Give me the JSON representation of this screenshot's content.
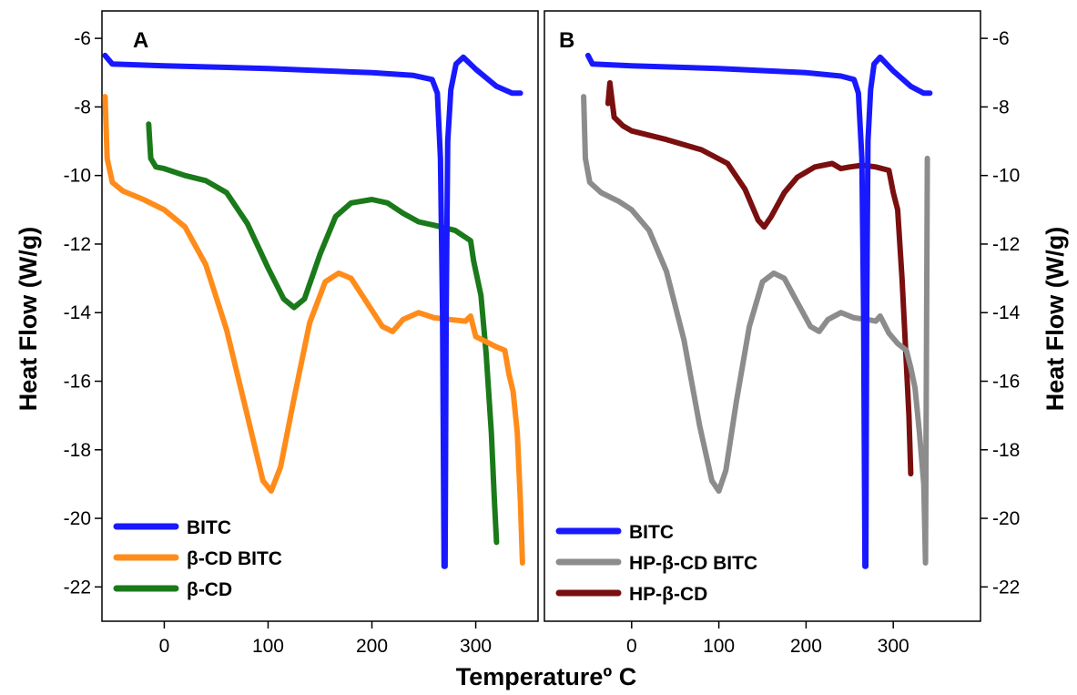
{
  "chart_data": [
    {
      "type": "line",
      "panel_label": "A",
      "ylabel": "Heat Flow (W/g)",
      "xlim": [
        -60,
        360
      ],
      "ylim": [
        -23,
        -5.2
      ],
      "x_ticks": [
        0,
        100,
        200,
        300
      ],
      "y_ticks": [
        -6,
        -8,
        -10,
        -12,
        -14,
        -16,
        -18,
        -20,
        -22
      ],
      "legend_position": "bottom-left",
      "series": [
        {
          "name": "BITC",
          "color": "#1919ff",
          "points": [
            [
              -57,
              -6.5
            ],
            [
              -50,
              -6.75
            ],
            [
              0,
              -6.8
            ],
            [
              100,
              -6.88
            ],
            [
              200,
              -7.0
            ],
            [
              240,
              -7.08
            ],
            [
              258,
              -7.2
            ],
            [
              263,
              -7.6
            ],
            [
              266,
              -9.5
            ],
            [
              268,
              -14
            ],
            [
              269.5,
              -21.4
            ],
            [
              270.5,
              -21.4
            ],
            [
              271.5,
              -14
            ],
            [
              273,
              -9
            ],
            [
              276,
              -7.5
            ],
            [
              281,
              -6.75
            ],
            [
              288,
              -6.55
            ],
            [
              300,
              -6.9
            ],
            [
              320,
              -7.4
            ],
            [
              335,
              -7.6
            ],
            [
              343,
              -7.6
            ]
          ]
        },
        {
          "name": "β-CD BITC",
          "color": "#ff8c1a",
          "points": [
            [
              -57,
              -7.7
            ],
            [
              -55,
              -9.5
            ],
            [
              -50,
              -10.2
            ],
            [
              -40,
              -10.45
            ],
            [
              -20,
              -10.7
            ],
            [
              0,
              -11.0
            ],
            [
              20,
              -11.5
            ],
            [
              40,
              -12.6
            ],
            [
              60,
              -14.5
            ],
            [
              80,
              -17.0
            ],
            [
              95,
              -18.9
            ],
            [
              103,
              -19.2
            ],
            [
              112,
              -18.5
            ],
            [
              125,
              -16.5
            ],
            [
              140,
              -14.3
            ],
            [
              155,
              -13.1
            ],
            [
              168,
              -12.85
            ],
            [
              180,
              -13.0
            ],
            [
              195,
              -13.7
            ],
            [
              210,
              -14.4
            ],
            [
              220,
              -14.55
            ],
            [
              230,
              -14.2
            ],
            [
              245,
              -14.0
            ],
            [
              260,
              -14.15
            ],
            [
              275,
              -14.2
            ],
            [
              290,
              -14.25
            ],
            [
              295,
              -14.1
            ],
            [
              300,
              -14.7
            ],
            [
              310,
              -14.85
            ],
            [
              320,
              -15.0
            ],
            [
              328,
              -15.1
            ],
            [
              332,
              -15.8
            ],
            [
              336,
              -16.3
            ],
            [
              340,
              -17.5
            ],
            [
              343,
              -19.5
            ],
            [
              345,
              -21.3
            ]
          ]
        },
        {
          "name": "β-CD",
          "color": "#1a7a1a",
          "points": [
            [
              -15,
              -8.5
            ],
            [
              -13,
              -9.5
            ],
            [
              -8,
              -9.75
            ],
            [
              0,
              -9.8
            ],
            [
              20,
              -10.0
            ],
            [
              40,
              -10.15
            ],
            [
              60,
              -10.5
            ],
            [
              80,
              -11.4
            ],
            [
              100,
              -12.7
            ],
            [
              115,
              -13.6
            ],
            [
              125,
              -13.85
            ],
            [
              135,
              -13.6
            ],
            [
              150,
              -12.3
            ],
            [
              165,
              -11.2
            ],
            [
              180,
              -10.8
            ],
            [
              200,
              -10.7
            ],
            [
              215,
              -10.8
            ],
            [
              230,
              -11.1
            ],
            [
              245,
              -11.35
            ],
            [
              260,
              -11.45
            ],
            [
              280,
              -11.6
            ],
            [
              295,
              -11.9
            ],
            [
              298,
              -12.5
            ],
            [
              305,
              -13.5
            ],
            [
              310,
              -15.2
            ],
            [
              315,
              -17.5
            ],
            [
              318,
              -19.5
            ],
            [
              320,
              -20.7
            ]
          ]
        }
      ]
    },
    {
      "type": "line",
      "panel_label": "B",
      "ylabel": "Heat Flow (W/g)",
      "xlim": [
        -100,
        400
      ],
      "ylim": [
        -23,
        -5.2
      ],
      "x_ticks": [
        0,
        100,
        200,
        300
      ],
      "y_ticks": [
        -6,
        -8,
        -10,
        -12,
        -14,
        -16,
        -18,
        -20,
        -22
      ],
      "legend_position": "bottom-left",
      "series": [
        {
          "name": "BITC",
          "color": "#1919ff",
          "points": [
            [
              -50,
              -6.5
            ],
            [
              -45,
              -6.75
            ],
            [
              0,
              -6.8
            ],
            [
              100,
              -6.88
            ],
            [
              200,
              -7.0
            ],
            [
              240,
              -7.1
            ],
            [
              255,
              -7.2
            ],
            [
              260,
              -7.6
            ],
            [
              264,
              -9.5
            ],
            [
              266,
              -14
            ],
            [
              267.5,
              -21.4
            ],
            [
              268.5,
              -21.4
            ],
            [
              269.5,
              -14
            ],
            [
              271,
              -9
            ],
            [
              274,
              -7.5
            ],
            [
              278,
              -6.75
            ],
            [
              285,
              -6.55
            ],
            [
              300,
              -6.95
            ],
            [
              320,
              -7.4
            ],
            [
              335,
              -7.6
            ],
            [
              342,
              -7.6
            ]
          ]
        },
        {
          "name": "HP-β-CD BITC",
          "color": "#8c8c8c",
          "points": [
            [
              -55,
              -7.7
            ],
            [
              -53,
              -9.5
            ],
            [
              -48,
              -10.2
            ],
            [
              -35,
              -10.5
            ],
            [
              -15,
              -10.75
            ],
            [
              0,
              -11.0
            ],
            [
              20,
              -11.6
            ],
            [
              40,
              -12.8
            ],
            [
              60,
              -14.8
            ],
            [
              78,
              -17.3
            ],
            [
              92,
              -18.9
            ],
            [
              100,
              -19.2
            ],
            [
              108,
              -18.6
            ],
            [
              120,
              -16.6
            ],
            [
              135,
              -14.4
            ],
            [
              150,
              -13.1
            ],
            [
              163,
              -12.85
            ],
            [
              175,
              -13.0
            ],
            [
              190,
              -13.7
            ],
            [
              205,
              -14.4
            ],
            [
              215,
              -14.55
            ],
            [
              225,
              -14.2
            ],
            [
              240,
              -14.0
            ],
            [
              255,
              -14.15
            ],
            [
              270,
              -14.2
            ],
            [
              280,
              -14.25
            ],
            [
              285,
              -14.1
            ],
            [
              295,
              -14.6
            ],
            [
              305,
              -14.9
            ],
            [
              315,
              -15.1
            ],
            [
              320,
              -15.6
            ],
            [
              325,
              -16.2
            ],
            [
              330,
              -17.5
            ],
            [
              335,
              -19.0
            ],
            [
              337,
              -21.3
            ],
            [
              339,
              -9.5
            ]
          ]
        },
        {
          "name": "HP-β-CD",
          "color": "#7a0f0f",
          "points": [
            [
              -27,
              -7.9
            ],
            [
              -25,
              -7.3
            ],
            [
              -22,
              -7.9
            ],
            [
              -20,
              -8.3
            ],
            [
              -10,
              -8.55
            ],
            [
              0,
              -8.7
            ],
            [
              40,
              -8.95
            ],
            [
              80,
              -9.25
            ],
            [
              110,
              -9.65
            ],
            [
              130,
              -10.4
            ],
            [
              145,
              -11.3
            ],
            [
              152,
              -11.5
            ],
            [
              160,
              -11.2
            ],
            [
              175,
              -10.5
            ],
            [
              190,
              -10.05
            ],
            [
              210,
              -9.75
            ],
            [
              230,
              -9.65
            ],
            [
              240,
              -9.8
            ],
            [
              250,
              -9.75
            ],
            [
              265,
              -9.7
            ],
            [
              280,
              -9.75
            ],
            [
              295,
              -9.85
            ],
            [
              300,
              -10.5
            ],
            [
              305,
              -11.0
            ],
            [
              310,
              -13.0
            ],
            [
              315,
              -15.5
            ],
            [
              318,
              -17.0
            ],
            [
              320,
              -18.7
            ]
          ]
        }
      ]
    }
  ],
  "shared_xlabel": "Temperatureº C"
}
